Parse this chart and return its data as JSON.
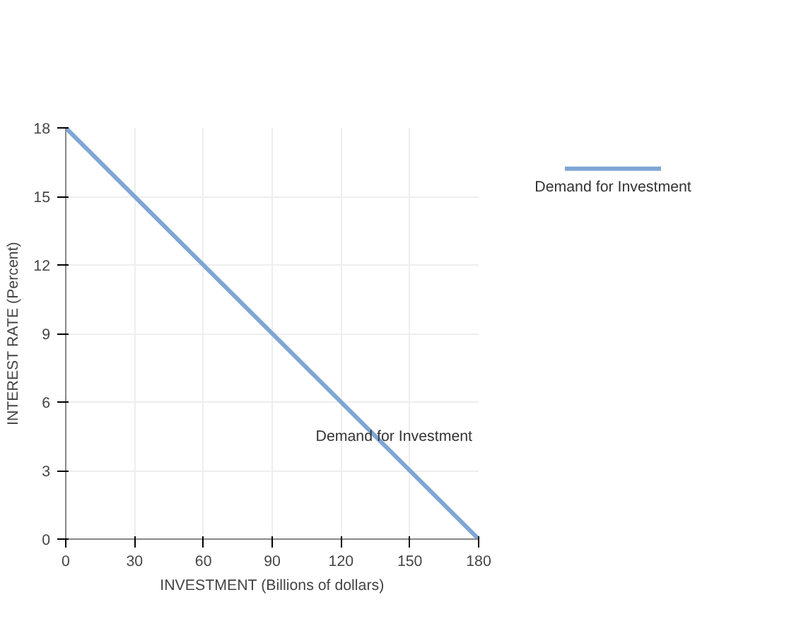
{
  "chart_data": {
    "type": "line",
    "xlabel": "INVESTMENT (Billions of dollars)",
    "ylabel": "INTEREST RATE (Percent)",
    "x": [
      0,
      180
    ],
    "series": [
      {
        "name": "Demand for Investment",
        "color": "#7fa6d4",
        "values": [
          18,
          0
        ]
      }
    ],
    "xlim": [
      0,
      180
    ],
    "ylim": [
      0,
      18
    ],
    "xticks": [
      0,
      30,
      60,
      90,
      120,
      150,
      180
    ],
    "yticks": [
      0,
      3,
      6,
      9,
      12,
      15,
      18
    ],
    "annotations": [
      "Demand for Investment"
    ],
    "grid": true,
    "legend": "right",
    "marker": "none",
    "line_style": "solid"
  }
}
